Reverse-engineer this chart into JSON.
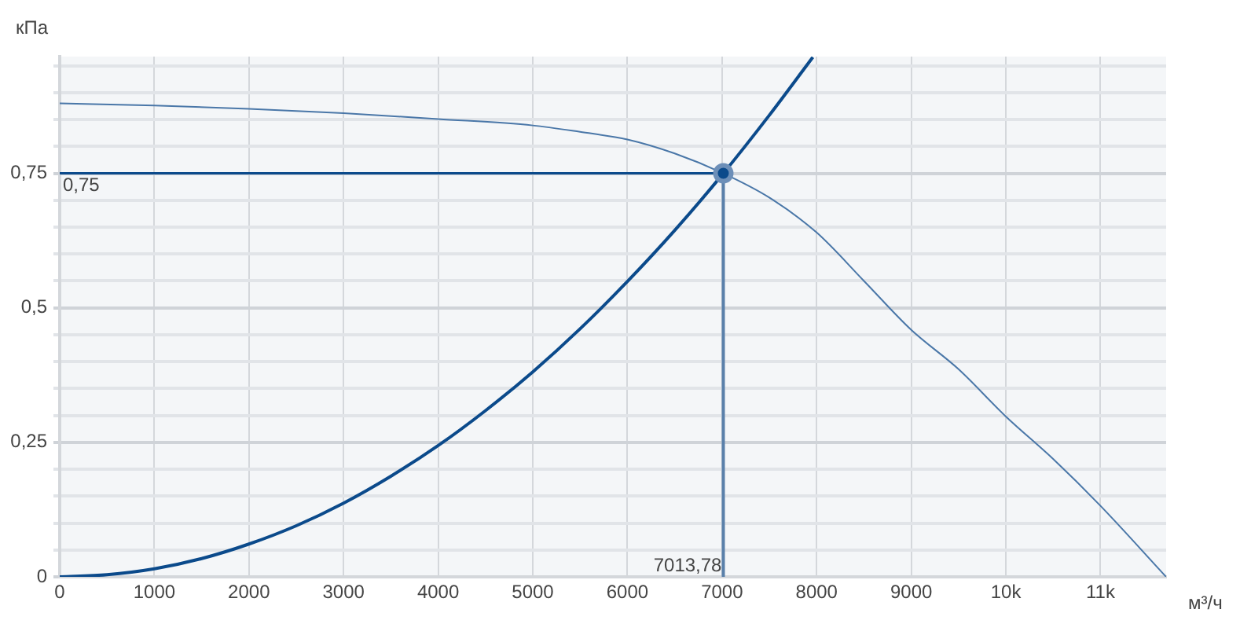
{
  "chart_data": {
    "type": "line",
    "xlabel": "м³/ч",
    "ylabel": "кПа",
    "xlim": [
      0,
      11694
    ],
    "ylim": [
      0,
      0.967
    ],
    "xticks": [
      0,
      1000,
      2000,
      3000,
      4000,
      5000,
      6000,
      7000,
      8000,
      9000,
      {
        "value": 10000,
        "label": "10k"
      },
      {
        "value": 11000,
        "label": "11k"
      }
    ],
    "yticks": [
      0,
      {
        "value": 0.05,
        "label": null
      },
      {
        "value": 0.1,
        "label": null
      },
      {
        "value": 0.15,
        "label": null
      },
      {
        "value": 0.2,
        "label": null
      },
      {
        "value": 0.25,
        "label": "0,25"
      },
      {
        "value": 0.3,
        "label": null
      },
      {
        "value": 0.35,
        "label": null
      },
      {
        "value": 0.4,
        "label": null
      },
      {
        "value": 0.45,
        "label": null
      },
      {
        "value": 0.5,
        "label": "0,5"
      },
      {
        "value": 0.55,
        "label": null
      },
      {
        "value": 0.6,
        "label": null
      },
      {
        "value": 0.65,
        "label": null
      },
      {
        "value": 0.7,
        "label": null
      },
      {
        "value": 0.75,
        "label": "0,75"
      },
      {
        "value": 0.8,
        "label": null
      },
      {
        "value": 0.85,
        "label": null
      },
      {
        "value": 0.9,
        "label": null
      },
      {
        "value": 0.95,
        "label": null
      }
    ],
    "grid": true,
    "series": [
      {
        "type": "line",
        "color": "#4a77a8",
        "x": [
          0,
          1000,
          2000,
          3000,
          4000,
          5000,
          5500,
          6000,
          6500,
          7013.78,
          7500,
          8000,
          8500,
          9000,
          9500,
          10000,
          10500,
          11000,
          11694
        ],
        "values": [
          0.88,
          0.876,
          0.87,
          0.862,
          0.851,
          0.839,
          0.827,
          0.813,
          0.787,
          0.75,
          0.705,
          0.64,
          0.55,
          0.459,
          0.386,
          0.298,
          0.219,
          0.132,
          0
        ]
      },
      {
        "type": "line",
        "color": "#0b4a8b",
        "x": [
          0,
          500,
          1000,
          1500,
          2000,
          2500,
          3000,
          3500,
          4000,
          4500,
          5000,
          5500,
          6000,
          6500,
          7000,
          7500,
          7960
        ],
        "values": [
          0,
          0.004,
          0.015,
          0.034,
          0.061,
          0.095,
          0.137,
          0.187,
          0.244,
          0.309,
          0.381,
          0.461,
          0.549,
          0.644,
          0.747,
          0.858,
          0.966
        ]
      },
      {
        "type": "scatter",
        "color": "#0b4a8b",
        "marker": "circle",
        "x": [
          7013.78
        ],
        "values": [
          0.75
        ]
      }
    ],
    "ref_lines": [
      {
        "axis": "y",
        "value": 0.75,
        "label": "0,75",
        "color": "#0b4a8b"
      },
      {
        "axis": "x",
        "value": 7013.78,
        "label": "7013,78",
        "color": "#5a80aa"
      }
    ]
  }
}
